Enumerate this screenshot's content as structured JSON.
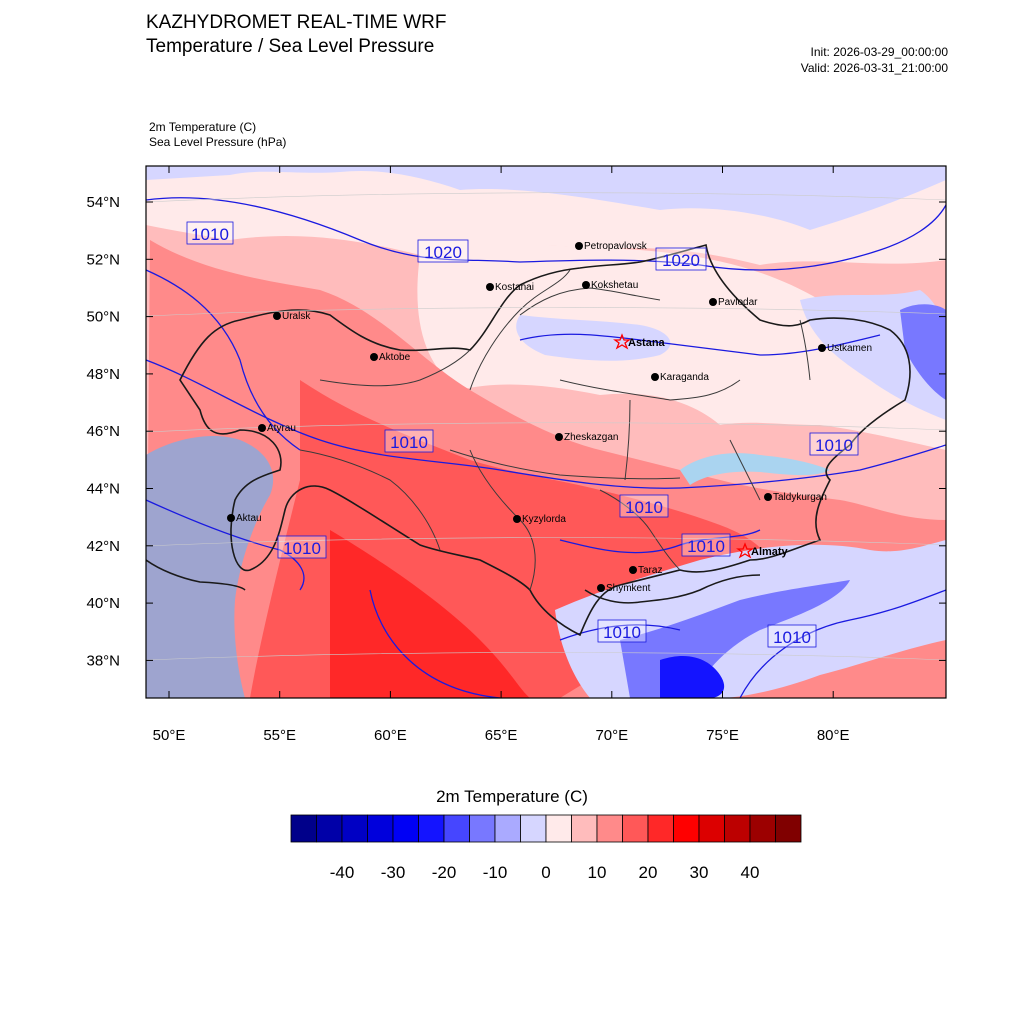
{
  "header": {
    "title_line1": "KAZHYDROMET REAL-TIME WRF",
    "title_line2": "Temperature / Sea Level Pressure",
    "init": "Init: 2026-03-29_00:00:00",
    "valid": "Valid: 2026-03-31_21:00:00"
  },
  "fields": {
    "shaded": "2m Temperature   (C)",
    "contour": "Sea Level Pressure   (hPa)"
  },
  "map": {
    "lat_labels": [
      "54°N",
      "52°N",
      "50°N",
      "48°N",
      "46°N",
      "44°N",
      "42°N",
      "40°N",
      "38°N"
    ],
    "lon_labels": [
      "50°E",
      "55°E",
      "60°E",
      "65°E",
      "70°E",
      "75°E",
      "80°E"
    ],
    "cities": [
      "Petropavlovsk",
      "Kostanai",
      "Kokshetau",
      "Pavlodar",
      "Uralsk",
      "Aktobe",
      "Ustkamen",
      "Karaganda",
      "Atyrau",
      "Zheskazgan",
      "Aktau",
      "Kyzylorda",
      "Taldykurgan",
      "Taraz",
      "Shymkent"
    ],
    "capitals": [
      "Astana",
      "Almaty"
    ],
    "isobar_labels": [
      "1010",
      "1020",
      "1020",
      "1010",
      "1010",
      "1010",
      "1010",
      "1010",
      "1010",
      "1010"
    ],
    "colors": {
      "isobar": "#1a1ae0",
      "border": "#1a1a1a",
      "capital_star": "#ff0000"
    }
  },
  "colorbar": {
    "title": "2m Temperature  (C)",
    "tick_labels": [
      "-40",
      "-30",
      "-20",
      "-10",
      "0",
      "10",
      "20",
      "30",
      "40"
    ],
    "colors": [
      "#00008a",
      "#0000a8",
      "#0000c4",
      "#0000dc",
      "#0000f5",
      "#1414ff",
      "#4646ff",
      "#7878ff",
      "#aaaaff",
      "#d6d6ff",
      "#ffeaea",
      "#ffbcbc",
      "#ff8a8a",
      "#ff5858",
      "#ff2828",
      "#ff0000",
      "#dc0000",
      "#bc0000",
      "#9c0000",
      "#800000"
    ]
  }
}
